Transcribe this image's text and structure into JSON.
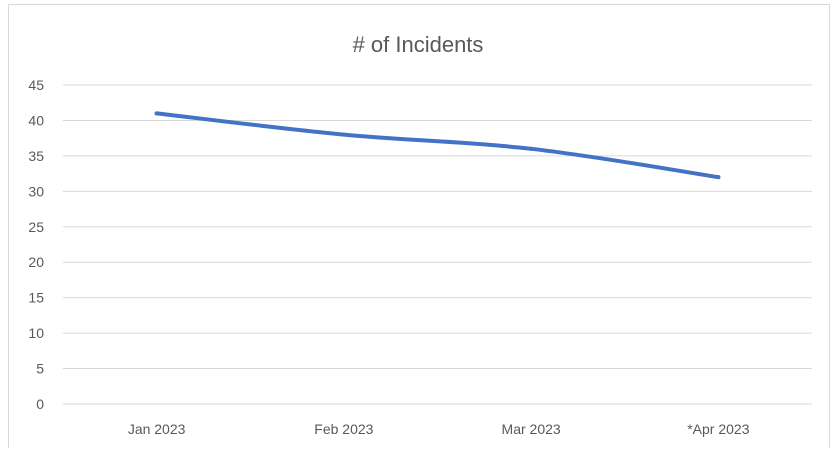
{
  "chart_data": {
    "type": "line",
    "title": "# of Incidents",
    "categories": [
      "Jan 2023",
      "Feb 2023",
      "Mar 2023",
      "*Apr 2023"
    ],
    "series": [
      {
        "values": [
          41,
          38,
          36,
          32
        ],
        "color": "#4472c4"
      }
    ],
    "ylim": [
      0,
      45
    ],
    "yticks": [
      0,
      5,
      10,
      15,
      20,
      25,
      30,
      35,
      40,
      45
    ],
    "grid": true,
    "legend": "none"
  }
}
